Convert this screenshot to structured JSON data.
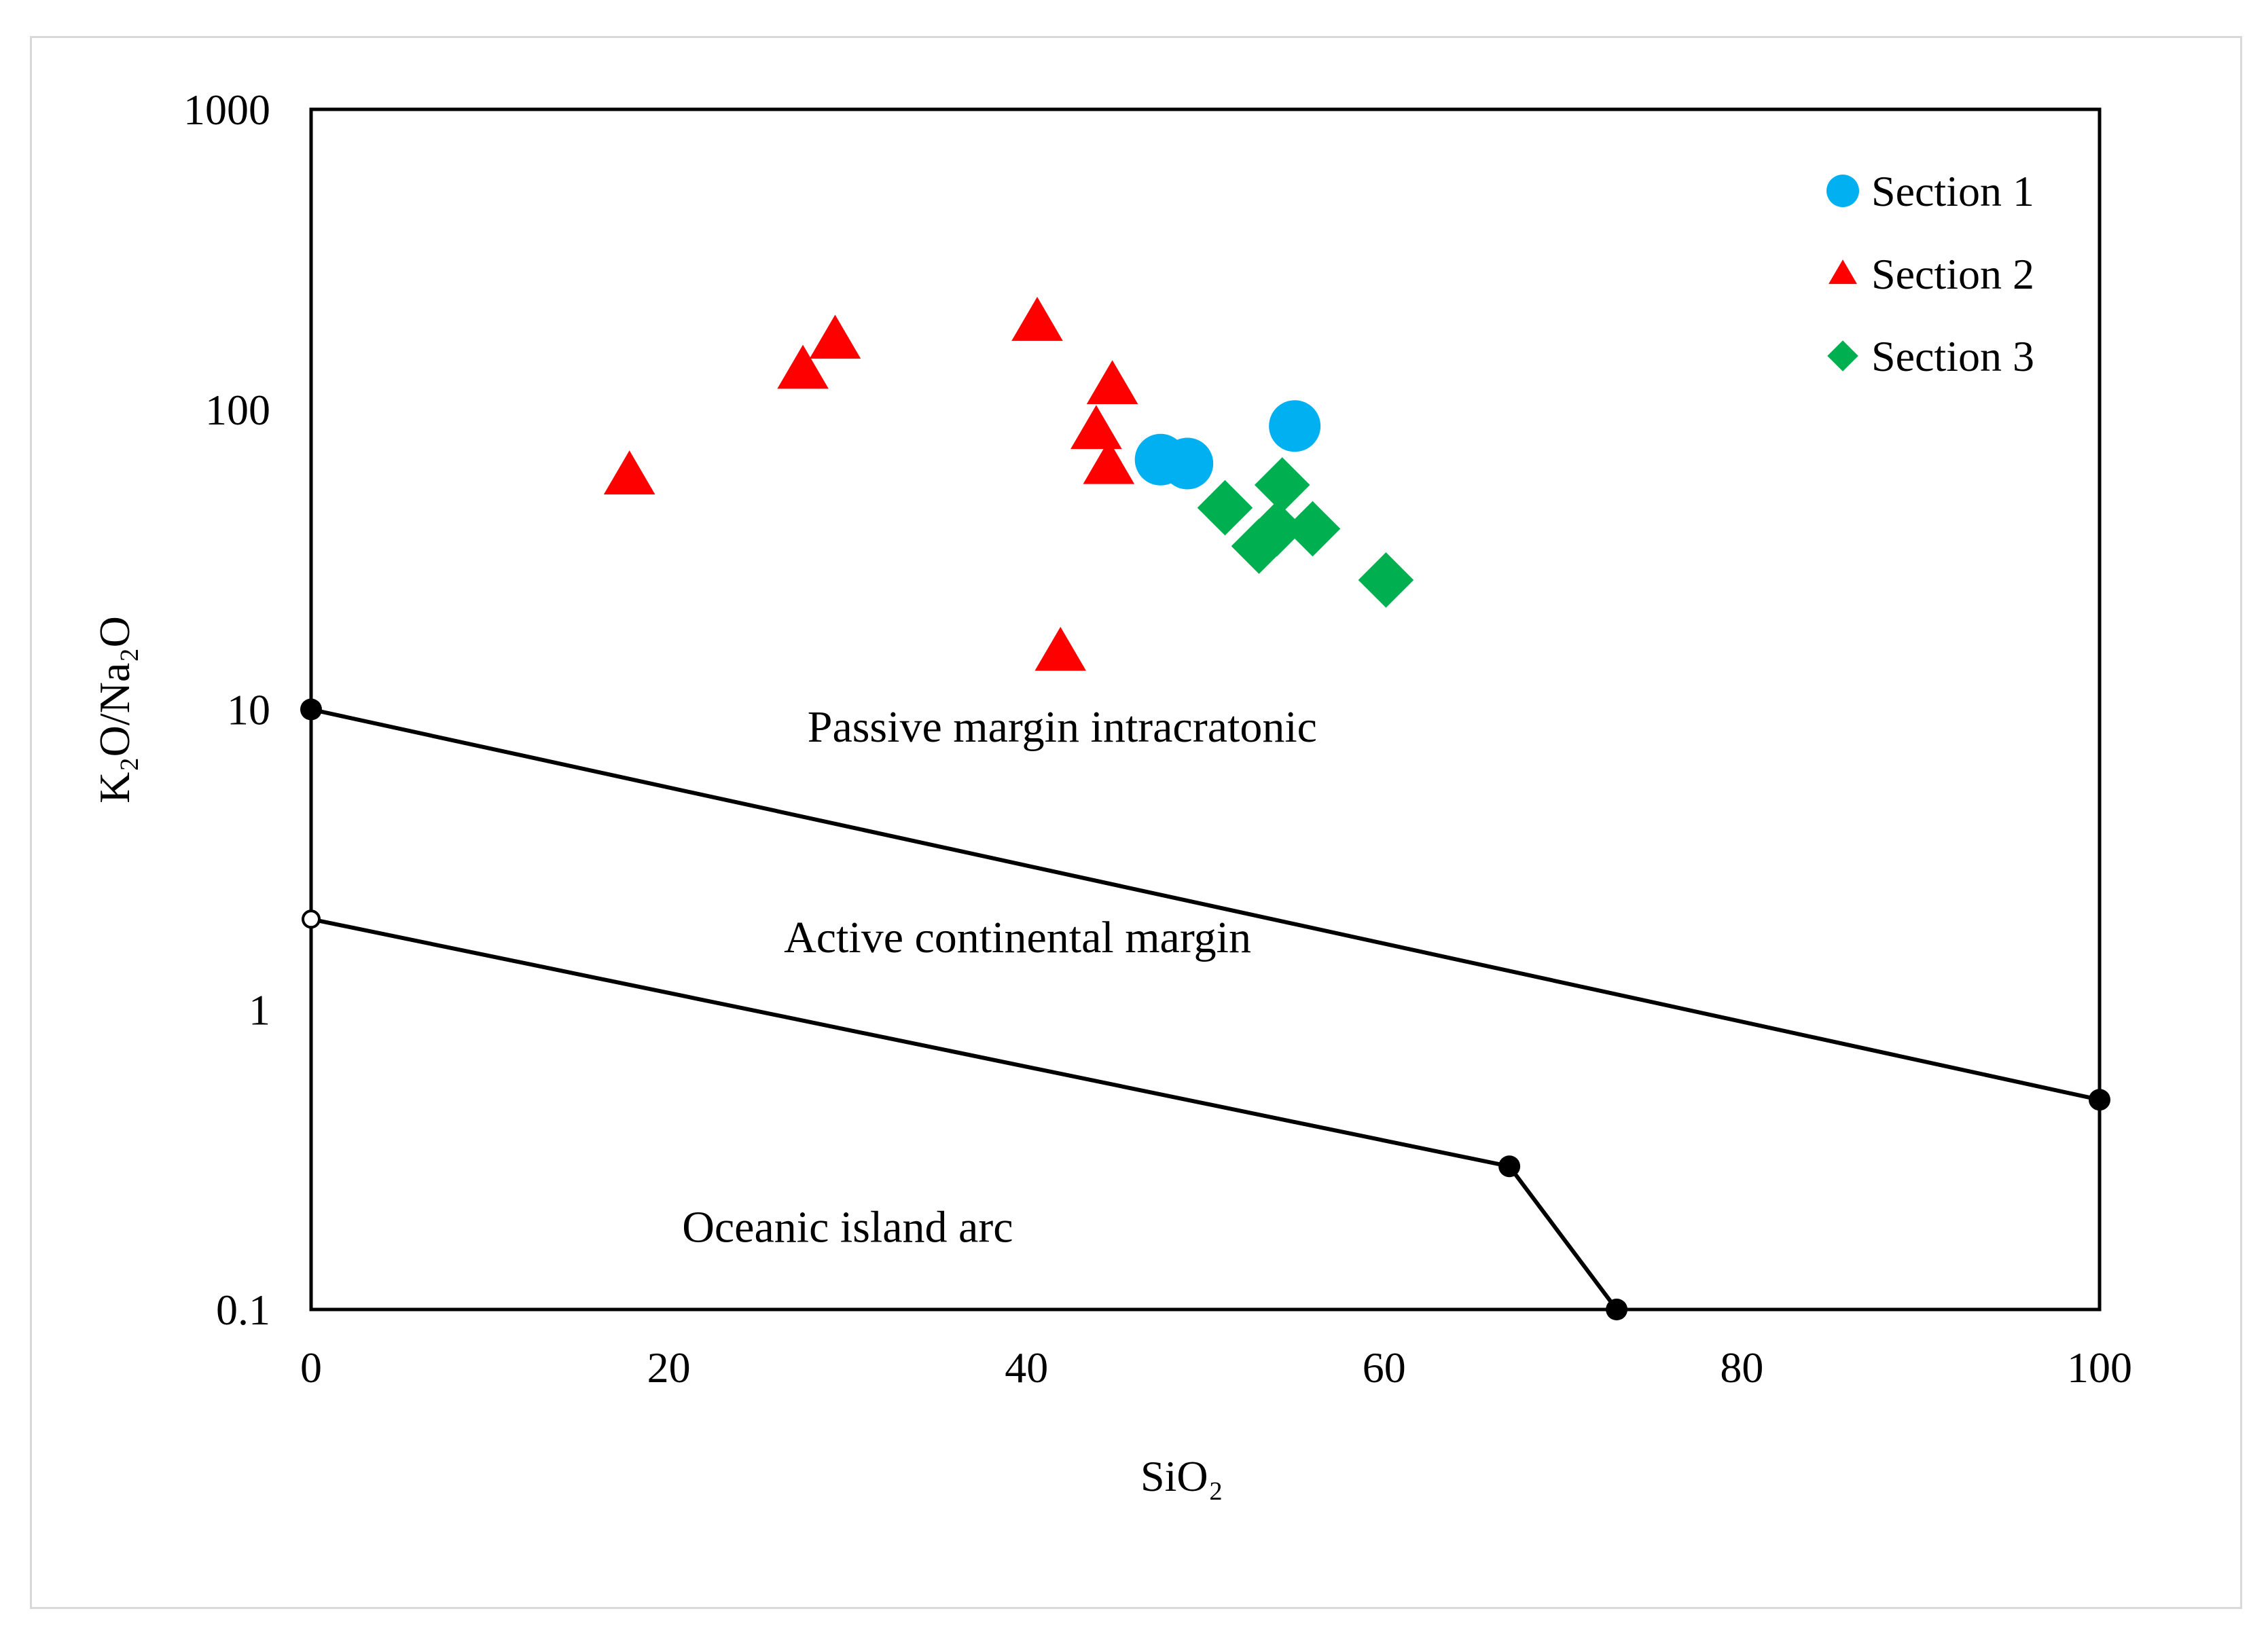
{
  "chart_data": {
    "type": "scatter",
    "title": "",
    "xlabel": "SiO₂",
    "ylabel": "K₂O/Na₂O",
    "xscale": "linear",
    "yscale": "log",
    "xlim": [
      0,
      100
    ],
    "ylim": [
      0.1,
      1000
    ],
    "xticks": [
      0,
      20,
      40,
      60,
      80,
      100
    ],
    "xtick_labels": [
      "0",
      "20",
      "40",
      "60",
      "80",
      "100"
    ],
    "yticks": [
      0.1,
      1,
      10,
      100,
      1000
    ],
    "ytick_labels": [
      "0.1",
      "1",
      "10",
      "100",
      "1000"
    ],
    "grid": false,
    "legend_position": "top-right",
    "series": [
      {
        "name": "Section 1",
        "marker": "circle",
        "color": "#00b0f0",
        "points": [
          [
            47.5,
            68
          ],
          [
            49,
            66
          ],
          [
            55,
            88
          ]
        ]
      },
      {
        "name": "Section 2",
        "marker": "triangle",
        "color": "#ff0000",
        "points": [
          [
            17.8,
            60
          ],
          [
            27.5,
            135
          ],
          [
            29.3,
            170
          ],
          [
            40.6,
            195
          ],
          [
            44.8,
            120
          ],
          [
            43.9,
            85
          ],
          [
            44.6,
            65
          ],
          [
            41.9,
            15.5
          ]
        ]
      },
      {
        "name": "Section 3",
        "marker": "diamond",
        "color": "#00b050",
        "points": [
          [
            51.1,
            47
          ],
          [
            54.3,
            56
          ],
          [
            53,
            35
          ],
          [
            54,
            40
          ],
          [
            56,
            40
          ],
          [
            60.1,
            27
          ]
        ]
      }
    ],
    "boundaries": [
      {
        "name": "passive-active-boundary",
        "points": [
          [
            0,
            10
          ],
          [
            100,
            0.5
          ]
        ],
        "markers": [
          "filled",
          "filled"
        ]
      },
      {
        "name": "active-oceanic-boundary",
        "points": [
          [
            0,
            2
          ],
          [
            67,
            0.3
          ],
          [
            73,
            0.1
          ]
        ],
        "markers": [
          "open",
          "filled",
          "filled"
        ]
      }
    ],
    "annotations": [
      {
        "text": "Passive margin intracratonic",
        "x": 42,
        "y": 7.8
      },
      {
        "text": "Active continental margin",
        "x": 39.5,
        "y": 1.55
      },
      {
        "text": "Oceanic island arc",
        "x": 30,
        "y": 0.168
      }
    ]
  }
}
